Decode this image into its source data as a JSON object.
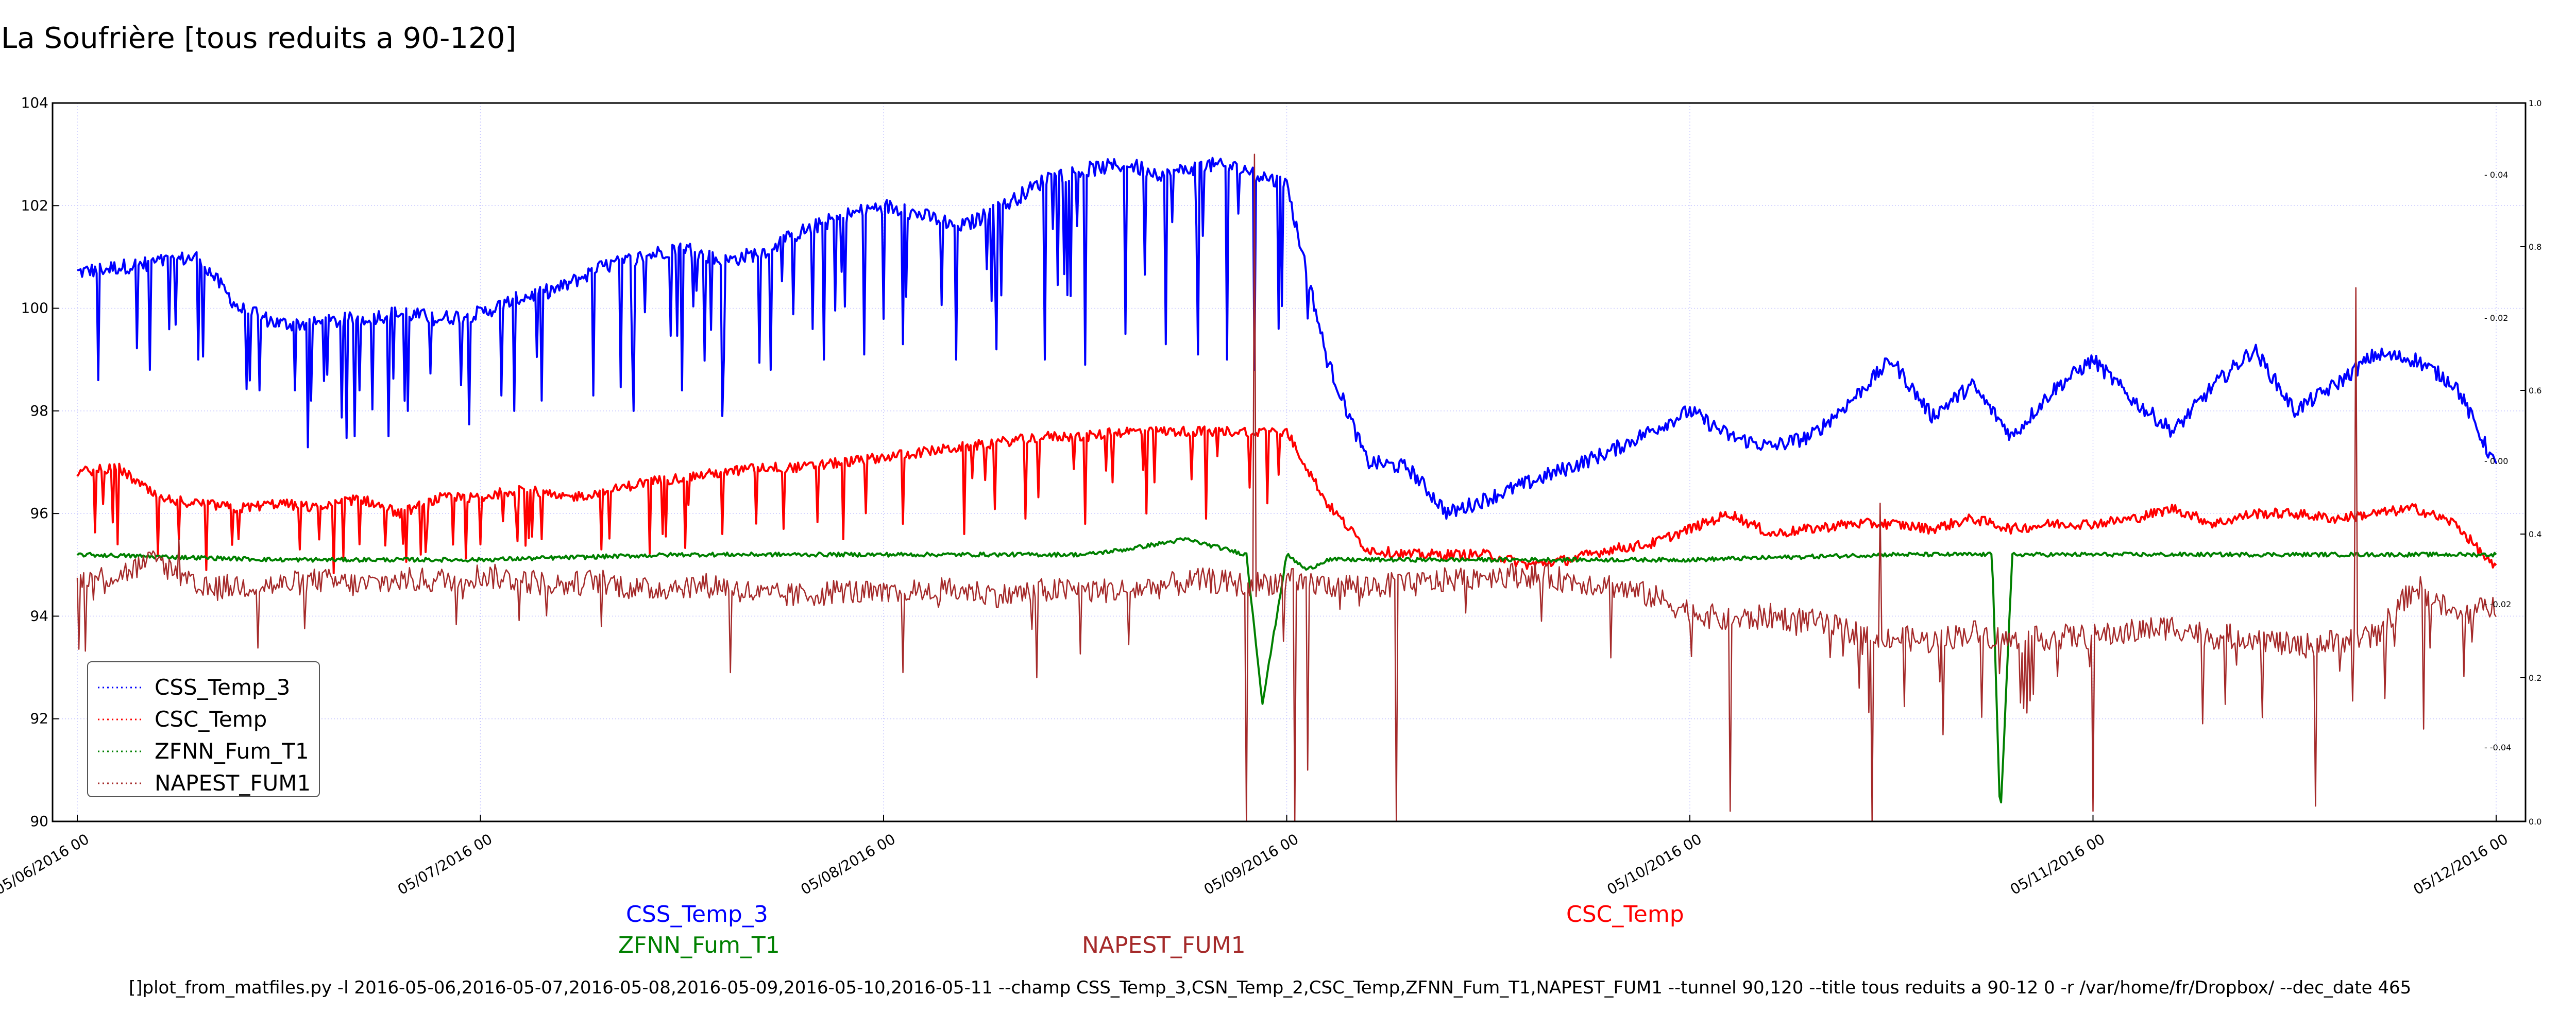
{
  "chart_data": {
    "type": "line",
    "title": "La Soufrière [tous reduits a 90-120]",
    "xlabel": "",
    "ylabel": "",
    "x_tick_labels": [
      "05/06/2016 00",
      "05/07/2016 00",
      "05/08/2016 00",
      "05/09/2016 00",
      "05/10/2016 00",
      "05/11/2016 00",
      "05/12/2016 00"
    ],
    "y_ticks": [
      90,
      92,
      94,
      96,
      98,
      100,
      102,
      104
    ],
    "ylim": [
      90,
      104
    ],
    "right_axis_ticks": [
      "0.0",
      "0.2",
      "0.4",
      "0.6",
      "0.8",
      "1.0"
    ],
    "right_axis_inner_ticks": [
      "- -0.04",
      "- -0.02",
      "- 0.00",
      "- 0.02",
      "- 0.04"
    ],
    "grid": true,
    "legend_position": "lower-left",
    "series": [
      {
        "name": "CSS_Temp_3",
        "color": "#0000ff",
        "x": [
          0,
          0.1,
          0.2,
          0.3,
          0.4,
          0.5,
          0.6,
          0.7,
          0.8,
          0.9,
          1.0,
          1.1,
          1.2,
          1.3,
          1.4,
          1.5,
          1.6,
          1.7,
          1.8,
          1.9,
          2.0,
          2.1,
          2.2,
          2.3,
          2.4,
          2.5,
          2.6,
          2.7,
          2.8,
          2.9,
          3.0,
          3.1,
          3.2,
          3.3,
          3.4,
          3.5,
          3.6,
          3.7,
          3.8,
          3.9,
          4.0,
          4.1,
          4.2,
          4.3,
          4.4,
          4.5,
          4.6,
          4.7,
          4.8,
          4.9,
          5.0,
          5.1,
          5.2,
          5.3,
          5.4,
          5.5,
          5.6,
          5.7,
          5.8,
          5.9,
          6.0
        ],
        "y": [
          100.7,
          100.8,
          100.9,
          101.0,
          100.0,
          99.7,
          99.7,
          99.8,
          99.9,
          99.8,
          99.9,
          100.2,
          100.4,
          100.8,
          101.0,
          101.2,
          100.9,
          101.1,
          101.5,
          101.8,
          102.0,
          101.8,
          101.6,
          102.0,
          102.5,
          102.7,
          102.8,
          102.6,
          102.8,
          102.7,
          102.4,
          99.0,
          97.0,
          96.9,
          96.0,
          96.3,
          96.6,
          96.9,
          97.2,
          97.6,
          98.0,
          97.5,
          97.3,
          97.5,
          98.2,
          99.0,
          97.9,
          98.5,
          97.5,
          98.4,
          99.0,
          98.2,
          97.6,
          98.5,
          99.2,
          98.0,
          98.5,
          99.1,
          99.0,
          98.5,
          96.9
        ],
        "noise": 0.15,
        "dips": [
          [
            0.05,
            98.6
          ],
          [
            0.18,
            98.8
          ],
          [
            0.3,
            99.0
          ],
          [
            0.45,
            98.4
          ],
          [
            0.58,
            98.2
          ],
          [
            0.7,
            98.4
          ],
          [
            0.82,
            98.0
          ],
          [
            0.95,
            98.5
          ],
          [
            1.05,
            98.3
          ],
          [
            1.15,
            98.2
          ],
          [
            1.28,
            98.3
          ],
          [
            1.38,
            98.0
          ],
          [
            1.5,
            98.4
          ],
          [
            1.6,
            97.9
          ],
          [
            1.72,
            98.8
          ],
          [
            1.85,
            99.0
          ],
          [
            1.95,
            99.1
          ],
          [
            2.05,
            99.3
          ],
          [
            2.18,
            99.0
          ],
          [
            2.28,
            99.2
          ],
          [
            2.4,
            99.0
          ],
          [
            2.5,
            98.9
          ],
          [
            2.6,
            99.5
          ],
          [
            2.7,
            99.3
          ],
          [
            2.78,
            99.1
          ],
          [
            2.85,
            99.0
          ],
          [
            2.92,
            98.8
          ],
          [
            2.98,
            99.6
          ],
          [
            3.05,
            99.8
          ]
        ]
      },
      {
        "name": "CSC_Temp",
        "color": "#ff0000",
        "x": [
          0,
          0.1,
          0.2,
          0.3,
          0.4,
          0.5,
          0.6,
          0.7,
          0.8,
          0.9,
          1.0,
          1.1,
          1.2,
          1.3,
          1.4,
          1.5,
          1.6,
          1.7,
          1.8,
          1.9,
          2.0,
          2.1,
          2.2,
          2.3,
          2.4,
          2.5,
          2.6,
          2.7,
          2.8,
          2.9,
          3.0,
          3.1,
          3.2,
          3.3,
          3.4,
          3.5,
          3.6,
          3.7,
          3.8,
          3.9,
          4.0,
          4.1,
          4.2,
          4.3,
          4.4,
          4.5,
          4.6,
          4.7,
          4.8,
          4.9,
          5.0,
          5.1,
          5.2,
          5.3,
          5.4,
          5.5,
          5.6,
          5.7,
          5.8,
          5.9,
          6.0
        ],
        "y": [
          96.8,
          96.9,
          96.3,
          96.2,
          96.1,
          96.2,
          96.1,
          96.3,
          96.0,
          96.3,
          96.3,
          96.5,
          96.3,
          96.4,
          96.6,
          96.7,
          96.8,
          96.9,
          96.9,
          97.0,
          97.1,
          97.2,
          97.3,
          97.4,
          97.5,
          97.5,
          97.6,
          97.6,
          97.6,
          97.6,
          97.6,
          96.2,
          95.3,
          95.2,
          95.2,
          95.2,
          95.0,
          95.1,
          95.3,
          95.4,
          95.7,
          96.0,
          95.6,
          95.7,
          95.8,
          95.8,
          95.7,
          95.9,
          95.7,
          95.8,
          95.8,
          95.9,
          96.1,
          95.8,
          96.0,
          96.0,
          95.9,
          96.0,
          96.1,
          95.8,
          94.9
        ],
        "noise": 0.1,
        "dips": [
          [
            0.1,
            95.4
          ],
          [
            0.25,
            95.5
          ],
          [
            0.4,
            95.5
          ],
          [
            0.55,
            95.3
          ],
          [
            0.7,
            95.4
          ],
          [
            0.85,
            95.2
          ],
          [
            1.0,
            95.4
          ],
          [
            1.15,
            95.5
          ],
          [
            1.3,
            95.3
          ],
          [
            1.45,
            95.6
          ],
          [
            1.6,
            95.6
          ],
          [
            1.75,
            95.7
          ],
          [
            1.9,
            95.5
          ],
          [
            2.05,
            95.8
          ],
          [
            2.2,
            95.6
          ],
          [
            2.35,
            95.9
          ],
          [
            2.5,
            95.8
          ],
          [
            2.65,
            96.0
          ],
          [
            2.8,
            95.9
          ],
          [
            2.95,
            96.2
          ]
        ]
      },
      {
        "name": "ZFNN_Fum_T1",
        "color": "#008000",
        "x": [
          0,
          0.5,
          1.0,
          1.5,
          2.0,
          2.5,
          2.6,
          2.75,
          2.9,
          2.94,
          3.0,
          3.05,
          3.1,
          3.5,
          4.0,
          4.5,
          4.75,
          4.77,
          4.8,
          5.0,
          5.5,
          6.0
        ],
        "y": [
          95.2,
          95.1,
          95.1,
          95.2,
          95.2,
          95.2,
          95.3,
          95.5,
          95.2,
          92.3,
          95.2,
          94.9,
          95.1,
          95.1,
          95.1,
          95.2,
          95.2,
          90.0,
          95.2,
          95.2,
          95.2,
          95.2
        ],
        "noise": 0.04,
        "dips": []
      },
      {
        "name": "NAPEST_FUM1",
        "color": "#a52a2a",
        "x": [
          0,
          0.1,
          0.2,
          0.3,
          0.4,
          0.5,
          0.6,
          0.7,
          0.8,
          0.9,
          1.0,
          1.1,
          1.2,
          1.3,
          1.4,
          1.5,
          1.6,
          1.7,
          1.8,
          1.9,
          2.0,
          2.1,
          2.2,
          2.3,
          2.4,
          2.5,
          2.6,
          2.7,
          2.8,
          2.9,
          3.0,
          3.1,
          3.2,
          3.3,
          3.4,
          3.5,
          3.6,
          3.7,
          3.8,
          3.9,
          4.0,
          4.1,
          4.2,
          4.3,
          4.4,
          4.5,
          4.6,
          4.7,
          4.8,
          4.9,
          5.0,
          5.1,
          5.2,
          5.3,
          5.4,
          5.5,
          5.6,
          5.7,
          5.8,
          5.9,
          6.0
        ],
        "y": [
          94.7,
          94.8,
          95.1,
          94.5,
          94.6,
          94.6,
          94.7,
          94.6,
          94.7,
          94.7,
          94.8,
          94.7,
          94.6,
          94.7,
          94.5,
          94.6,
          94.6,
          94.4,
          94.4,
          94.5,
          94.4,
          94.5,
          94.5,
          94.4,
          94.5,
          94.5,
          94.5,
          94.6,
          94.7,
          94.6,
          94.7,
          94.6,
          94.6,
          94.6,
          94.7,
          94.8,
          94.8,
          94.7,
          94.6,
          94.4,
          94.1,
          93.9,
          94.0,
          93.9,
          93.7,
          93.6,
          93.5,
          93.7,
          93.5,
          93.6,
          93.6,
          93.7,
          93.8,
          93.6,
          93.6,
          93.4,
          93.5,
          93.6,
          94.6,
          94.0,
          94.2
        ],
        "noise": 0.25,
        "spikes": [
          [
            0.25,
            95.5
          ],
          [
            1.3,
            93.8
          ],
          [
            1.62,
            92.9
          ],
          [
            2.05,
            92.9
          ],
          [
            2.38,
            92.8
          ],
          [
            2.9,
            90.0
          ],
          [
            2.92,
            103.0
          ],
          [
            3.02,
            90.0
          ],
          [
            3.05,
            91.0
          ],
          [
            3.27,
            90.0
          ],
          [
            3.18,
            94.2
          ],
          [
            4.1,
            90.2
          ],
          [
            4.45,
            90.0
          ],
          [
            4.47,
            96.2
          ],
          [
            5.0,
            90.2
          ],
          [
            5.55,
            90.3
          ],
          [
            5.65,
            100.4
          ],
          [
            5.7,
            93.8
          ],
          [
            5.82,
            91.8
          ]
        ]
      }
    ]
  },
  "below_labels": {
    "css": "CSS_Temp_3",
    "zfnn": "ZFNN_Fum_T1",
    "napest": "NAPEST_FUM1",
    "csc": "CSC_Temp"
  },
  "command_line": "[]plot_from_matfiles.py -l 2016-05-06,2016-05-07,2016-05-08,2016-05-09,2016-05-10,2016-05-11 --champ CSS_Temp_3,CSN_Temp_2,CSC_Temp,ZFNN_Fum_T1,NAPEST_FUM1 --tunnel 90,120 --title tous reduits a 90-12 0 -r /var/home/fr/Dropbox/ --dec_date 465"
}
